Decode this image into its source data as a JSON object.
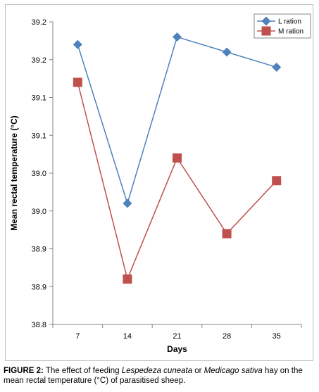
{
  "chart_data": {
    "type": "line",
    "xlabel": "Days",
    "ylabel": "Mean rectal temperature (°C)",
    "categories": [
      "7",
      "14",
      "21",
      "28",
      "35"
    ],
    "y_tick_labels": [
      "38.8",
      "38.9",
      "38.9",
      "39.0",
      "39.0",
      "39.1",
      "39.1",
      "39.2",
      "39.2"
    ],
    "ylim": [
      38.8,
      39.2
    ],
    "grid": false,
    "legend_position": "top-right",
    "series": [
      {
        "name": "L ration",
        "color": "#4f81bd",
        "marker": "diamond",
        "values": [
          39.17,
          38.96,
          39.18,
          39.16,
          39.14
        ]
      },
      {
        "name": "M ration",
        "color": "#c0504d",
        "marker": "square",
        "values": [
          39.12,
          38.86,
          39.02,
          38.92,
          38.99
        ]
      }
    ]
  },
  "caption": {
    "label": "FIGURE 2:",
    "text_1": " The effect of feeding ",
    "species_1": "Lespedeza cuneata",
    "text_2": " or ",
    "species_2": "Medicago sativa",
    "text_3": " hay on the mean rectal temperature (°C) of parasitised sheep."
  }
}
